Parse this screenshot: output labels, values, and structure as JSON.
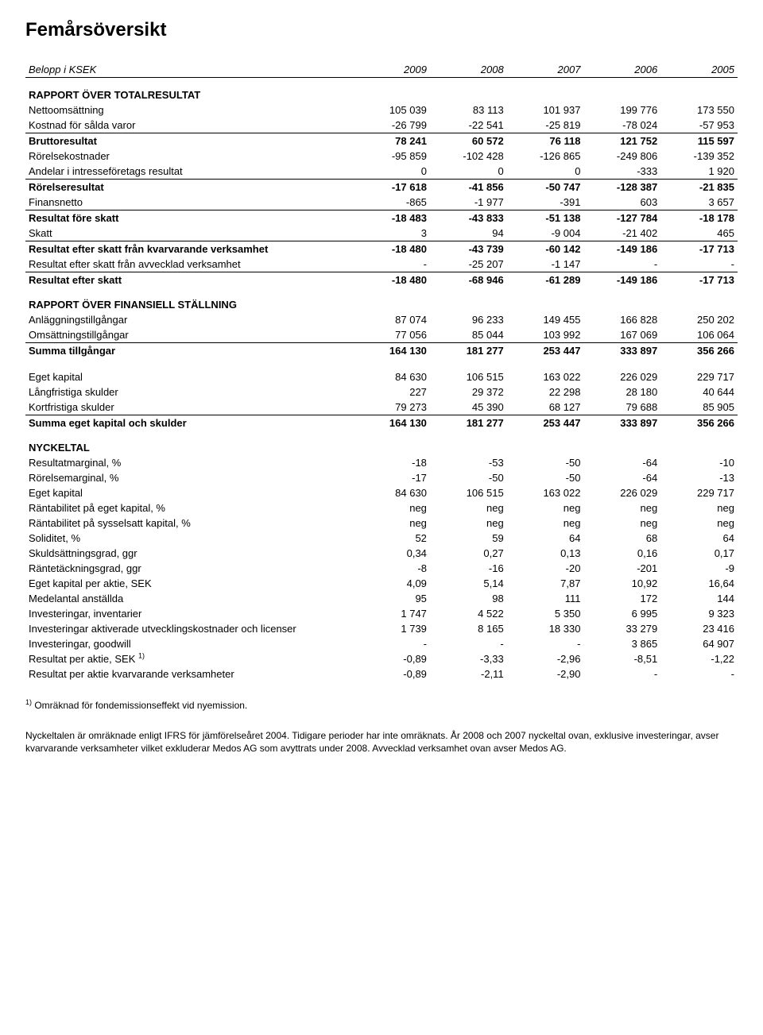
{
  "title": "Femårsöversikt",
  "header": {
    "label": "Belopp i KSEK",
    "years": [
      "2009",
      "2008",
      "2007",
      "2006",
      "2005"
    ]
  },
  "sections": [
    {
      "title": "RAPPORT ÖVER TOTALRESULTAT",
      "rows": [
        {
          "label": "Nettoomsättning",
          "vals": [
            "105 039",
            "83 113",
            "101 937",
            "199 776",
            "173 550"
          ]
        },
        {
          "label": "Kostnad för sålda varor",
          "vals": [
            "-26 799",
            "-22 541",
            "-25 819",
            "-78 024",
            "-57 953"
          ],
          "line_bottom": true
        },
        {
          "label": "Bruttoresultat",
          "vals": [
            "78 241",
            "60 572",
            "76 118",
            "121 752",
            "115 597"
          ],
          "bold": true
        },
        {
          "label": "Rörelsekostnader",
          "vals": [
            "-95 859",
            "-102 428",
            "-126 865",
            "-249 806",
            "-139 352"
          ]
        },
        {
          "label": "Andelar i intresseföretags resultat",
          "vals": [
            "0",
            "0",
            "0",
            "-333",
            "1 920"
          ],
          "line_bottom": true
        },
        {
          "label": "Rörelseresultat",
          "vals": [
            "-17 618",
            "-41 856",
            "-50 747",
            "-128 387",
            "-21 835"
          ],
          "bold": true
        },
        {
          "label": "Finansnetto",
          "vals": [
            "-865",
            "-1 977",
            "-391",
            "603",
            "3 657"
          ],
          "line_bottom": true
        },
        {
          "label": "Resultat före skatt",
          "vals": [
            "-18 483",
            "-43 833",
            "-51 138",
            "-127 784",
            "-18 178"
          ],
          "bold": true
        },
        {
          "label": "Skatt",
          "vals": [
            "3",
            "94",
            "-9 004",
            "-21 402",
            "465"
          ],
          "line_bottom": true
        },
        {
          "label": "Resultat efter skatt från kvarvarande verksamhet",
          "vals": [
            "-18 480",
            "-43 739",
            "-60 142",
            "-149 186",
            "-17 713"
          ],
          "bold": true
        },
        {
          "label": "Resultat efter skatt från avvecklad verksamhet",
          "vals": [
            "-",
            "-25 207",
            "-1 147",
            "-",
            "-"
          ],
          "line_bottom": true
        },
        {
          "label": "Resultat efter skatt",
          "vals": [
            "-18 480",
            "-68 946",
            "-61 289",
            "-149 186",
            "-17 713"
          ],
          "bold": true
        }
      ]
    },
    {
      "title": "RAPPORT ÖVER FINANSIELL STÄLLNING",
      "rows": [
        {
          "label": "Anläggningstillgångar",
          "vals": [
            "87 074",
            "96 233",
            "149 455",
            "166 828",
            "250 202"
          ]
        },
        {
          "label": "Omsättningstillgångar",
          "vals": [
            "77 056",
            "85 044",
            "103 992",
            "167 069",
            "106 064"
          ],
          "line_bottom": true
        },
        {
          "label": "Summa tillgångar",
          "vals": [
            "164 130",
            "181 277",
            "253 447",
            "333 897",
            "356 266"
          ],
          "bold": true
        },
        {
          "spacer": true
        },
        {
          "label": "Eget kapital",
          "vals": [
            "84 630",
            "106 515",
            "163 022",
            "226 029",
            "229 717"
          ]
        },
        {
          "label": "Långfristiga skulder",
          "vals": [
            "227",
            "29 372",
            "22 298",
            "28 180",
            "40 644"
          ]
        },
        {
          "label": "Kortfristiga skulder",
          "vals": [
            "79 273",
            "45 390",
            "68 127",
            "79 688",
            "85 905"
          ],
          "line_bottom": true
        },
        {
          "label": "Summa eget kapital och skulder",
          "vals": [
            "164 130",
            "181 277",
            "253 447",
            "333 897",
            "356 266"
          ],
          "bold": true
        }
      ]
    },
    {
      "title": "NYCKELTAL",
      "rows": [
        {
          "label": "Resultatmarginal, %",
          "vals": [
            "-18",
            "-53",
            "-50",
            "-64",
            "-10"
          ]
        },
        {
          "label": "Rörelsemarginal, %",
          "vals": [
            "-17",
            "-50",
            "-50",
            "-64",
            "-13"
          ]
        },
        {
          "label": "Eget kapital",
          "vals": [
            "84 630",
            "106 515",
            "163 022",
            "226 029",
            "229 717"
          ]
        },
        {
          "label": "Räntabilitet på eget kapital, %",
          "vals": [
            "neg",
            "neg",
            "neg",
            "neg",
            "neg"
          ]
        },
        {
          "label": "Räntabilitet på sysselsatt kapital, %",
          "vals": [
            "neg",
            "neg",
            "neg",
            "neg",
            "neg"
          ]
        },
        {
          "label": "Soliditet, %",
          "vals": [
            "52",
            "59",
            "64",
            "68",
            "64"
          ]
        },
        {
          "label": "Skuldsättningsgrad, ggr",
          "vals": [
            "0,34",
            "0,27",
            "0,13",
            "0,16",
            "0,17"
          ]
        },
        {
          "label": "Räntetäckningsgrad, ggr",
          "vals": [
            "-8",
            "-16",
            "-20",
            "-201",
            "-9"
          ]
        },
        {
          "label": "Eget kapital per aktie, SEK",
          "vals": [
            "4,09",
            "5,14",
            "7,87",
            "10,92",
            "16,64"
          ]
        },
        {
          "label": "Medelantal anställda",
          "vals": [
            "95",
            "98",
            "111",
            "172",
            "144"
          ]
        },
        {
          "label": "Investeringar, inventarier",
          "vals": [
            "1 747",
            "4 522",
            "5 350",
            "6 995",
            "9 323"
          ]
        },
        {
          "label": "Investeringar aktiverade utvecklingskostnader och licenser",
          "vals": [
            "1 739",
            "8 165",
            "18 330",
            "33 279",
            "23 416"
          ]
        },
        {
          "label": "Investeringar, goodwill",
          "vals": [
            "-",
            "-",
            "-",
            "3 865",
            "64 907"
          ]
        },
        {
          "label": "Resultat per aktie, SEK ",
          "sup": "1)",
          "vals": [
            "-0,89",
            "-3,33",
            "-2,96",
            "-8,51",
            "-1,22"
          ]
        },
        {
          "label": "Resultat per aktie kvarvarande verksamheter",
          "vals": [
            "-0,89",
            "-2,11",
            "-2,90",
            "-",
            "-"
          ]
        }
      ]
    }
  ],
  "footnotes": {
    "note1_sup": "1)",
    "note1": " Omräknad för fondemissionseffekt vid nyemission.",
    "note2": "Nyckeltalen är omräknade enligt IFRS för jämförelseåret 2004. Tidigare perioder har inte omräknats. År 2008 och 2007 nyckeltal ovan, exklusive investeringar, avser kvarvarande verksamheter vilket exkluderar Medos AG som avyttrats under 2008. Avvecklad verksamhet ovan avser Medos AG."
  },
  "style": {
    "title_fontsize": 24,
    "body_fontsize": 13,
    "line_color": "#000000",
    "background_color": "#ffffff",
    "text_color": "#000000"
  }
}
